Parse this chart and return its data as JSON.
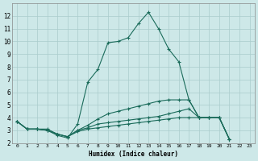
{
  "xlabel": "Humidex (Indice chaleur)",
  "background_color": "#cde8e8",
  "grid_color": "#aacccc",
  "line_color": "#1a6b5a",
  "xlim": [
    -0.5,
    23.5
  ],
  "ylim": [
    2,
    13
  ],
  "yticks": [
    2,
    3,
    4,
    5,
    6,
    7,
    8,
    9,
    10,
    11,
    12
  ],
  "xticks": [
    0,
    1,
    2,
    3,
    4,
    5,
    6,
    7,
    8,
    9,
    10,
    11,
    12,
    13,
    14,
    15,
    16,
    17,
    18,
    19,
    20,
    21,
    22,
    23
  ],
  "series": [
    [
      3.7,
      3.1,
      3.1,
      3.0,
      2.6,
      2.4,
      3.5,
      6.8,
      7.8,
      9.9,
      10.0,
      10.3,
      11.4,
      12.3,
      11.0,
      9.4,
      8.4,
      5.4,
      4.0,
      4.0,
      4.0,
      2.3,
      null,
      null
    ],
    [
      3.7,
      3.1,
      3.1,
      3.0,
      2.7,
      2.5,
      3.0,
      3.4,
      3.9,
      4.3,
      4.5,
      4.7,
      4.9,
      5.1,
      5.3,
      5.4,
      5.4,
      5.4,
      4.0,
      4.0,
      4.0,
      2.3,
      null,
      null
    ],
    [
      3.7,
      3.1,
      3.1,
      3.0,
      2.7,
      2.5,
      3.0,
      3.2,
      3.5,
      3.6,
      3.7,
      3.8,
      3.9,
      4.0,
      4.1,
      4.3,
      4.5,
      4.7,
      4.0,
      4.0,
      4.0,
      2.3,
      null,
      null
    ],
    [
      3.7,
      3.1,
      3.1,
      3.1,
      2.7,
      2.5,
      2.9,
      3.1,
      3.2,
      3.3,
      3.4,
      3.5,
      3.6,
      3.7,
      3.8,
      3.9,
      4.0,
      4.0,
      4.0,
      4.0,
      4.0,
      2.3,
      null,
      null
    ]
  ],
  "x_vals": [
    0,
    1,
    2,
    3,
    4,
    5,
    6,
    7,
    8,
    9,
    10,
    11,
    12,
    13,
    14,
    15,
    16,
    17,
    18,
    19,
    20,
    21,
    22,
    23
  ]
}
